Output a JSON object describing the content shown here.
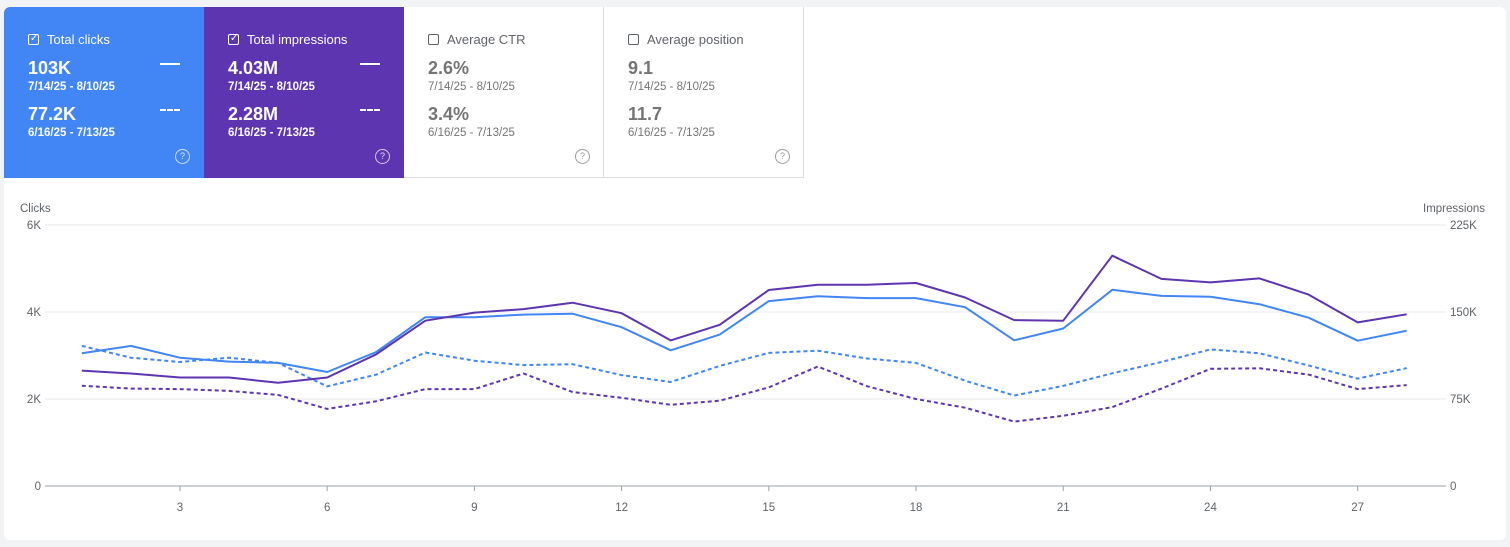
{
  "cards": [
    {
      "title": "Total clicks",
      "checked": "✓",
      "current_value": "103K",
      "current_range": "7/14/25 - 8/10/25",
      "previous_value": "77.2K",
      "previous_range": "6/16/25 - 7/13/25",
      "help": "?"
    },
    {
      "title": "Total impressions",
      "checked": "✓",
      "current_value": "4.03M",
      "current_range": "7/14/25 - 8/10/25",
      "previous_value": "2.28M",
      "previous_range": "6/16/25 - 7/13/25",
      "help": "?"
    },
    {
      "title": "Average CTR",
      "checked": "",
      "current_value": "2.6%",
      "current_range": "7/14/25 - 8/10/25",
      "previous_value": "3.4%",
      "previous_range": "6/16/25 - 7/13/25",
      "help": "?"
    },
    {
      "title": "Average position",
      "checked": "",
      "current_value": "9.1",
      "current_range": "7/14/25 - 8/10/25",
      "previous_value": "11.7",
      "previous_range": "6/16/25 - 7/13/25",
      "help": "?"
    }
  ],
  "colors": {
    "clicks": "#4285f4",
    "impressions": "#5e35b1",
    "grid": "#e8eaed",
    "axis_text": "#5f6368"
  },
  "chart_data": {
    "type": "line",
    "x": [
      1,
      2,
      3,
      4,
      5,
      6,
      7,
      8,
      9,
      10,
      11,
      12,
      13,
      14,
      15,
      16,
      17,
      18,
      19,
      20,
      21,
      22,
      23,
      24,
      25,
      26,
      27,
      28
    ],
    "x_ticks": [
      3,
      6,
      9,
      12,
      15,
      18,
      21,
      24,
      27
    ],
    "xlim": [
      0.25,
      28.8
    ],
    "y_left": {
      "label": "Clicks",
      "ylim": [
        0,
        6000
      ],
      "ticks": [
        0,
        2000,
        4000,
        6000
      ],
      "tick_labels": [
        "0",
        "2K",
        "4K",
        "6K"
      ]
    },
    "y_right": {
      "label": "Impressions",
      "ylim": [
        0,
        225000
      ],
      "ticks": [
        0,
        75000,
        150000,
        225000
      ],
      "tick_labels": [
        "0",
        "75K",
        "150K",
        "225K"
      ]
    },
    "series": [
      {
        "axis": "left",
        "color": "#4285f4",
        "style": "solid",
        "values": [
          3050,
          3220,
          2950,
          2860,
          2830,
          2620,
          3080,
          3880,
          3880,
          3940,
          3960,
          3650,
          3120,
          3480,
          4250,
          4360,
          4320,
          4320,
          4110,
          3350,
          3620,
          4510,
          4370,
          4350,
          4180,
          3870,
          3340,
          3570
        ]
      },
      {
        "axis": "left",
        "color": "#4285f4",
        "style": "dashed",
        "values": [
          3220,
          2950,
          2850,
          2950,
          2830,
          2290,
          2560,
          3070,
          2880,
          2780,
          2800,
          2550,
          2390,
          2760,
          3060,
          3110,
          2930,
          2830,
          2420,
          2080,
          2300,
          2590,
          2850,
          3140,
          3050,
          2770,
          2470,
          2710
        ]
      },
      {
        "axis": "right",
        "color": "#5e35b1",
        "style": "solid",
        "values": [
          99500,
          97000,
          93500,
          93500,
          89000,
          93500,
          113500,
          142500,
          149500,
          152500,
          158000,
          149000,
          125500,
          139000,
          169000,
          173500,
          173500,
          175000,
          162500,
          143000,
          142500,
          198500,
          178500,
          175500,
          179000,
          165000,
          141000,
          148000
        ]
      },
      {
        "axis": "right",
        "color": "#5e35b1",
        "style": "dashed",
        "values": [
          86500,
          84000,
          83500,
          82000,
          78500,
          66500,
          73000,
          83500,
          83500,
          97000,
          81000,
          76000,
          70000,
          73500,
          85000,
          103000,
          86000,
          75000,
          67500,
          55500,
          60500,
          68000,
          84000,
          101000,
          101500,
          96000,
          83500,
          87000
        ]
      }
    ]
  }
}
